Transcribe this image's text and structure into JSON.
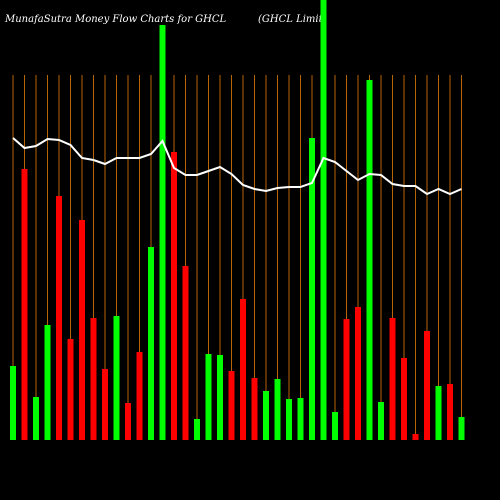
{
  "chart_data": {
    "type": "bar",
    "title": "MunafaSutra  Money Flow  Charts for GHCL",
    "subtitle": "(GHCL  Limit",
    "ylim": [
      0,
      440
    ],
    "series": [
      {
        "name": "money flow",
        "values": [
          74,
          271,
          43,
          115,
          244,
          101,
          220,
          122,
          71,
          124,
          37,
          88,
          193,
          415,
          288,
          174,
          21,
          86,
          85,
          69,
          141,
          62,
          49,
          61,
          41,
          42,
          302,
          440,
          28,
          121,
          133,
          360,
          38,
          122,
          82,
          6,
          109,
          54,
          56,
          23
        ],
        "colors": [
          "#00ff00",
          "#ff0000",
          "#00ff00",
          "#00ff00",
          "#ff0000",
          "#ff0000",
          "#ff0000",
          "#ff0000",
          "#ff0000",
          "#00ff00",
          "#ff0000",
          "#ff0000",
          "#00ff00",
          "#00ff00",
          "#ff0000",
          "#ff0000",
          "#00ff00",
          "#00ff00",
          "#00ff00",
          "#ff0000",
          "#ff0000",
          "#ff0000",
          "#00ff00",
          "#00ff00",
          "#00ff00",
          "#00ff00",
          "#00ff00",
          "#00ff00",
          "#00ff00",
          "#ff0000",
          "#ff0000",
          "#00ff00",
          "#00ff00",
          "#ff0000",
          "#ff0000",
          "#ff0000",
          "#ff0000",
          "#00ff00",
          "#ff0000",
          "#00ff00"
        ]
      },
      {
        "name": "price",
        "type": "line",
        "color": "#ffffff",
        "values": [
          302,
          292,
          294,
          301,
          300,
          295,
          282,
          280,
          276,
          282,
          282,
          282,
          286,
          299,
          272,
          265,
          265,
          269,
          273,
          266,
          255,
          251,
          249,
          252,
          253,
          253,
          257,
          282,
          278,
          269,
          260,
          266,
          265,
          256,
          254,
          254,
          246,
          251,
          246,
          251
        ]
      }
    ]
  }
}
